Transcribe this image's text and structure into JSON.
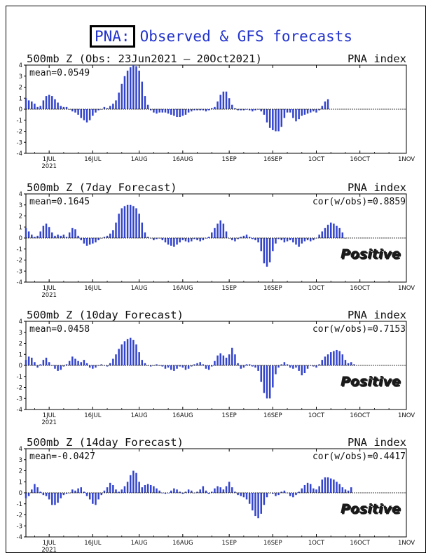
{
  "header": {
    "label": "PNA:",
    "title": "Observed & GFS forecasts",
    "colors": {
      "title": "#2233cc",
      "bars": "#3344cc"
    }
  },
  "chart_data": [
    {
      "type": "bar",
      "title": "500mb Z (Obs: 23Jun2021 – 20Oct2021)",
      "index_label": "PNA index",
      "mean_label": "mean=0.0549",
      "ylim": [
        -4,
        4
      ],
      "yticks": [
        -4,
        -3,
        -2,
        -1,
        0,
        1,
        2,
        3,
        4
      ],
      "x_range": [
        "2021-06-23",
        "2021-11-01"
      ],
      "x_ticks": [
        {
          "date": "2021-07-01",
          "label": "1JUL",
          "sub": "2021"
        },
        {
          "date": "2021-07-16",
          "label": "16JUL"
        },
        {
          "date": "2021-08-01",
          "label": "1AUG"
        },
        {
          "date": "2021-08-16",
          "label": "16AUG"
        },
        {
          "date": "2021-09-01",
          "label": "1SEP"
        },
        {
          "date": "2021-09-16",
          "label": "16SEP"
        },
        {
          "date": "2021-10-01",
          "label": "1OCT"
        },
        {
          "date": "2021-10-16",
          "label": "16OCT"
        },
        {
          "date": "2021-11-01",
          "label": "1NOV"
        }
      ],
      "start_date": "2021-06-23",
      "values": [
        1.0,
        0.8,
        0.7,
        0.5,
        0.2,
        0.3,
        0.8,
        1.2,
        1.3,
        1.2,
        0.9,
        0.6,
        0.3,
        0.2,
        0.2,
        0.0,
        -0.2,
        -0.3,
        -0.5,
        -0.8,
        -1.0,
        -1.2,
        -1.0,
        -0.6,
        -0.3,
        -0.1,
        0.0,
        0.2,
        0.1,
        0.3,
        0.5,
        0.8,
        1.5,
        2.3,
        3.0,
        3.5,
        3.8,
        4.0,
        3.9,
        3.5,
        2.5,
        1.2,
        0.4,
        -0.1,
        -0.3,
        -0.4,
        -0.3,
        -0.3,
        -0.3,
        -0.4,
        -0.5,
        -0.6,
        -0.7,
        -0.7,
        -0.6,
        -0.5,
        -0.3,
        -0.2,
        -0.1,
        -0.1,
        -0.1,
        -0.1,
        -0.2,
        -0.1,
        0.1,
        0.2,
        0.7,
        1.3,
        1.6,
        1.6,
        1.0,
        0.4,
        0.1,
        -0.1,
        -0.1,
        -0.1,
        0.0,
        -0.1,
        -0.2,
        -0.1,
        0.0,
        -0.2,
        -0.5,
        -1.2,
        -1.7,
        -1.9,
        -2.0,
        -2.0,
        -1.6,
        -0.8,
        -0.3,
        -0.3,
        -0.8,
        -1.1,
        -0.9,
        -0.6,
        -0.5,
        -0.4,
        -0.3,
        -0.2,
        -0.3,
        -0.1,
        0.3,
        0.7,
        0.9
      ]
    },
    {
      "type": "bar",
      "title": "500mb Z (7day Forecast)",
      "index_label": "PNA index",
      "mean_label": "mean=0.1645",
      "cor_label": "cor(w/obs)=0.8859",
      "stamp": "Positive",
      "ylim": [
        -4,
        4
      ],
      "yticks": [
        -4,
        -3,
        -2,
        -1,
        0,
        1,
        2,
        3,
        4
      ],
      "x_range": [
        "2021-06-23",
        "2021-11-01"
      ],
      "x_ticks": [
        {
          "date": "2021-07-01",
          "label": "1JUL",
          "sub": "2021"
        },
        {
          "date": "2021-07-16",
          "label": "16JUL"
        },
        {
          "date": "2021-08-01",
          "label": "1AUG"
        },
        {
          "date": "2021-08-16",
          "label": "16AUG"
        },
        {
          "date": "2021-09-01",
          "label": "1SEP"
        },
        {
          "date": "2021-09-16",
          "label": "16SEP"
        },
        {
          "date": "2021-10-01",
          "label": "1OCT"
        },
        {
          "date": "2021-10-16",
          "label": "16OCT"
        },
        {
          "date": "2021-11-01",
          "label": "1NOV"
        }
      ],
      "start_date": "2021-06-23",
      "values": [
        0.9,
        0.6,
        0.3,
        0.1,
        0.2,
        0.6,
        1.1,
        1.3,
        1.0,
        0.5,
        0.2,
        0.3,
        0.2,
        0.3,
        0.1,
        0.5,
        0.9,
        0.8,
        0.2,
        -0.2,
        -0.5,
        -0.7,
        -0.6,
        -0.5,
        -0.4,
        -0.2,
        0.0,
        0.1,
        0.2,
        0.4,
        0.7,
        1.4,
        2.2,
        2.7,
        2.9,
        3.0,
        3.0,
        2.9,
        2.7,
        2.2,
        1.4,
        0.5,
        0.1,
        0.0,
        -0.2,
        -0.1,
        0.0,
        -0.2,
        -0.4,
        -0.6,
        -0.7,
        -0.8,
        -0.6,
        -0.4,
        -0.2,
        -0.3,
        -0.4,
        -0.3,
        -0.1,
        -0.2,
        -0.3,
        -0.2,
        0.0,
        0.1,
        0.5,
        0.9,
        1.3,
        1.6,
        1.3,
        0.6,
        0.0,
        -0.2,
        -0.3,
        -0.1,
        0.1,
        0.2,
        0.3,
        0.1,
        -0.1,
        -0.2,
        -0.4,
        -1.2,
        -2.3,
        -2.6,
        -2.2,
        -1.2,
        -0.5,
        -0.1,
        -0.2,
        -0.4,
        -0.3,
        -0.2,
        -0.4,
        -0.6,
        -0.8,
        -0.5,
        -0.3,
        -0.2,
        -0.3,
        -0.2,
        0.0,
        0.3,
        0.6,
        0.9,
        1.2,
        1.4,
        1.3,
        1.1,
        0.9,
        0.5,
        0.0
      ]
    },
    {
      "type": "bar",
      "title": "500mb Z (10day Forecast)",
      "index_label": "PNA index",
      "mean_label": "mean=0.0458",
      "cor_label": "cor(w/obs)=0.7153",
      "stamp": "Positive",
      "ylim": [
        -4,
        4
      ],
      "yticks": [
        -4,
        -3,
        -2,
        -1,
        0,
        1,
        2,
        3,
        4
      ],
      "x_range": [
        "2021-06-23",
        "2021-11-01"
      ],
      "x_ticks": [
        {
          "date": "2021-07-01",
          "label": "1JUL",
          "sub": "2021"
        },
        {
          "date": "2021-07-16",
          "label": "16JUL"
        },
        {
          "date": "2021-08-01",
          "label": "1AUG"
        },
        {
          "date": "2021-08-16",
          "label": "16AUG"
        },
        {
          "date": "2021-09-01",
          "label": "1SEP"
        },
        {
          "date": "2021-09-16",
          "label": "16SEP"
        },
        {
          "date": "2021-10-01",
          "label": "1OCT"
        },
        {
          "date": "2021-10-16",
          "label": "16OCT"
        },
        {
          "date": "2021-11-01",
          "label": "1NOV"
        }
      ],
      "start_date": "2021-06-23",
      "values": [
        0.5,
        0.8,
        0.7,
        0.3,
        -0.2,
        0.1,
        0.5,
        0.7,
        0.3,
        0.0,
        -0.3,
        -0.5,
        -0.4,
        -0.1,
        0.1,
        0.4,
        0.8,
        0.6,
        0.4,
        0.3,
        0.5,
        0.2,
        -0.2,
        -0.3,
        -0.2,
        0.0,
        0.1,
        0.0,
        -0.1,
        0.2,
        0.6,
        1.0,
        1.5,
        1.9,
        2.2,
        2.4,
        2.5,
        2.3,
        1.9,
        1.2,
        0.5,
        0.2,
        0.0,
        -0.1,
        0.0,
        0.1,
        0.0,
        -0.1,
        -0.3,
        -0.2,
        -0.4,
        -0.5,
        -0.3,
        -0.1,
        -0.2,
        -0.4,
        -0.3,
        -0.1,
        0.1,
        0.2,
        0.3,
        0.1,
        -0.3,
        -0.4,
        -0.1,
        0.4,
        0.9,
        1.1,
        0.9,
        0.7,
        1.0,
        1.6,
        1.0,
        0.2,
        -0.3,
        -0.2,
        0.1,
        0.1,
        -0.1,
        -0.2,
        -0.5,
        -1.5,
        -2.5,
        -3.0,
        -3.0,
        -2.0,
        -0.8,
        -0.2,
        0.1,
        0.3,
        0.1,
        -0.2,
        -0.3,
        -0.2,
        -0.5,
        -0.9,
        -0.7,
        -0.3,
        0.0,
        -0.1,
        -0.2,
        0.1,
        0.5,
        0.8,
        1.0,
        1.2,
        1.3,
        1.4,
        1.3,
        1.0,
        0.5,
        0.2,
        0.3,
        0.1
      ]
    },
    {
      "type": "bar",
      "title": "500mb Z (14day Forecast)",
      "index_label": "PNA index",
      "mean_label": "mean=-0.0427",
      "cor_label": "cor(w/obs)=0.4417",
      "stamp": "Positive",
      "ylim": [
        -4,
        4
      ],
      "yticks": [
        -4,
        -3,
        -2,
        -1,
        0,
        1,
        2,
        3,
        4
      ],
      "x_range": [
        "2021-06-23",
        "2021-11-01"
      ],
      "x_ticks": [
        {
          "date": "2021-07-01",
          "label": "1JUL",
          "sub": "2021"
        },
        {
          "date": "2021-07-16",
          "label": "16JUL"
        },
        {
          "date": "2021-08-01",
          "label": "1AUG"
        },
        {
          "date": "2021-08-16",
          "label": "16AUG"
        },
        {
          "date": "2021-09-01",
          "label": "1SEP"
        },
        {
          "date": "2021-09-16",
          "label": "16SEP"
        },
        {
          "date": "2021-10-01",
          "label": "1OCT"
        },
        {
          "date": "2021-10-16",
          "label": "16OCT"
        },
        {
          "date": "2021-11-01",
          "label": "1NOV"
        }
      ],
      "start_date": "2021-06-23",
      "values": [
        -0.5,
        -0.3,
        0.3,
        0.8,
        0.5,
        0.1,
        -0.2,
        -0.3,
        -0.6,
        -1.1,
        -1.1,
        -0.9,
        -0.5,
        -0.2,
        -0.1,
        0.0,
        0.3,
        0.2,
        0.4,
        0.5,
        0.1,
        -0.3,
        -0.6,
        -1.0,
        -1.1,
        -0.6,
        -0.2,
        0.2,
        0.5,
        0.9,
        0.7,
        0.3,
        0.1,
        0.3,
        0.6,
        1.0,
        1.6,
        2.0,
        1.8,
        1.0,
        0.5,
        0.7,
        0.8,
        0.7,
        0.6,
        0.4,
        0.2,
        0.0,
        -0.1,
        0.0,
        0.2,
        0.4,
        0.3,
        0.1,
        -0.1,
        0.1,
        0.3,
        0.2,
        0.0,
        0.1,
        0.3,
        0.6,
        0.2,
        -0.1,
        0.1,
        0.4,
        0.6,
        0.5,
        0.3,
        0.6,
        1.0,
        0.5,
        0.1,
        -0.2,
        -0.3,
        -0.4,
        -0.6,
        -1.0,
        -1.6,
        -2.1,
        -2.3,
        -1.9,
        -1.1,
        -0.4,
        0.0,
        -0.1,
        -0.3,
        -0.2,
        0.1,
        0.2,
        0.0,
        -0.3,
        -0.4,
        -0.2,
        0.1,
        0.4,
        0.7,
        0.9,
        0.8,
        0.4,
        0.3,
        0.6,
        1.2,
        1.4,
        1.4,
        1.3,
        1.2,
        1.0,
        0.8,
        0.5,
        0.3,
        0.2,
        0.5
      ]
    }
  ]
}
